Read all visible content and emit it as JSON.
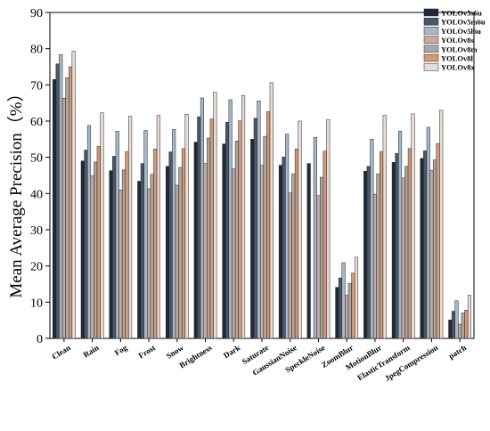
{
  "chart_data": {
    "type": "bar",
    "title": "",
    "xlabel": "",
    "ylabel": "Mean Average Precision（%）",
    "ylim": [
      0,
      90
    ],
    "yticks": [
      0,
      10,
      20,
      30,
      40,
      50,
      60,
      70,
      80,
      90
    ],
    "grid": false,
    "legend_position": "top-right",
    "categories": [
      "Clean",
      "Rain",
      "Fog",
      "Frost",
      "Snow",
      "Brightness",
      "Dark",
      "Saturate",
      "GaussianNoise",
      "SpeckleNoise",
      "ZoomBlur",
      "MotionBlur",
      "ElasticTransform",
      "JpegCompression",
      "patch"
    ],
    "series": [
      {
        "name": "YOLOv5s6u",
        "color": "#1f2a36",
        "values": [
          71.5,
          49.0,
          46.3,
          43.4,
          47.5,
          54.2,
          53.7,
          55.0,
          47.8,
          48.3,
          14.1,
          46.2,
          48.6,
          49.7,
          5.1
        ]
      },
      {
        "name": "YOLOv5m6u",
        "color": "#485868",
        "values": [
          75.8,
          52.0,
          50.3,
          48.3,
          51.5,
          61.2,
          59.7,
          60.8,
          50.1,
          0,
          16.7,
          47.5,
          51.1,
          51.8,
          7.5
        ]
      },
      {
        "name": "YOLOv5l6u",
        "color": "#a7b7c9",
        "values": [
          78.4,
          58.8,
          57.2,
          57.4,
          57.7,
          66.4,
          65.9,
          65.6,
          56.4,
          55.5,
          20.9,
          55.0,
          57.2,
          58.3,
          10.4
        ]
      },
      {
        "name": "YOLOv8s",
        "color": "#caa8a0",
        "values": [
          66.3,
          44.9,
          41.0,
          41.3,
          42.3,
          48.3,
          46.8,
          47.8,
          40.2,
          39.4,
          11.9,
          39.8,
          44.3,
          46.4,
          3.9
        ]
      },
      {
        "name": "YOLOv8m",
        "color": "#a9a9a4",
        "values": [
          72.0,
          48.7,
          46.5,
          45.3,
          47.2,
          55.3,
          54.5,
          55.8,
          45.4,
          44.5,
          15.2,
          45.4,
          47.5,
          49.3,
          7.0
        ]
      },
      {
        "name": "YOLOv8l",
        "color": "#d49a78",
        "values": [
          75.0,
          53.0,
          51.6,
          52.3,
          52.4,
          60.6,
          60.1,
          62.6,
          52.3,
          51.7,
          18.0,
          51.6,
          52.4,
          53.8,
          7.8
        ]
      },
      {
        "name": "YOLOv8x",
        "color": "#e9ddd6",
        "values": [
          79.3,
          62.3,
          61.3,
          61.6,
          61.9,
          68.0,
          67.1,
          70.6,
          60.0,
          60.4,
          22.4,
          61.6,
          62.0,
          63.0,
          11.9
        ]
      }
    ]
  }
}
